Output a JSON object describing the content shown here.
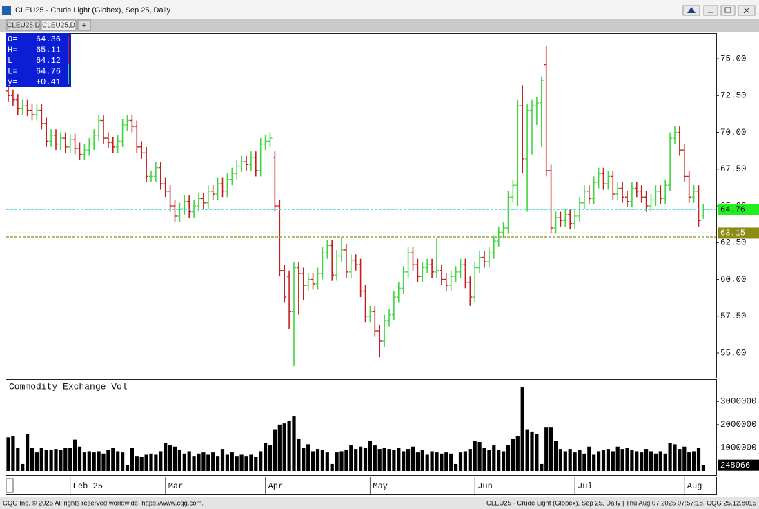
{
  "window": {
    "title": "CLEU25 - Crude Light (Globex), Sep 25, Daily",
    "tabs": [
      "CLEU25,D",
      "CLEU25,D",
      "+"
    ],
    "footer_left": "CQG Inc. © 2025 All rights reserved worldwide. https://www.cqg.com.",
    "footer_right": "CLEU25 - Crude Light (Globex), Sep 25, Daily | Thu Aug 07 2025 07:57:18, CQG 25.12.8015"
  },
  "chart_data": [
    {
      "type": "ohlc",
      "up_color": "#3fd63f",
      "down_color": "#c41e1e",
      "last_color": "#33d6d6",
      "level_color": "#8c8c14",
      "ylim": [
        53.31,
        76.74
      ],
      "yticks": [
        {
          "value": 55,
          "label": "55.00"
        },
        {
          "value": 57.5,
          "label": "57.50"
        },
        {
          "value": 60,
          "label": "60.00"
        },
        {
          "value": 62.5,
          "label": "62.50"
        },
        {
          "value": 65,
          "label": "65.00"
        },
        {
          "value": 67.5,
          "label": "67.50"
        },
        {
          "value": 70,
          "label": "70.00"
        },
        {
          "value": 72.5,
          "label": "72.50"
        },
        {
          "value": 75,
          "label": "75.00"
        }
      ],
      "levels": [
        63.15,
        62.89
      ],
      "ohlc_box": {
        "labels": [
          "O=",
          "H=",
          "L=",
          "L=",
          "y="
        ],
        "change": {
          "value": 0.41,
          "label": "+0.41"
        }
      },
      "categories": [
        null,
        null,
        null,
        null,
        null,
        null,
        null,
        null,
        null,
        null,
        null,
        null,
        null,
        "Feb 25",
        null,
        null,
        null,
        null,
        null,
        null,
        null,
        null,
        null,
        null,
        null,
        null,
        null,
        null,
        null,
        null,
        null,
        null,
        null,
        "Mar",
        null,
        null,
        null,
        null,
        null,
        null,
        null,
        null,
        null,
        null,
        null,
        null,
        null,
        null,
        null,
        null,
        null,
        null,
        null,
        null,
        "Apr",
        null,
        null,
        null,
        null,
        null,
        null,
        null,
        null,
        null,
        null,
        null,
        null,
        null,
        null,
        null,
        null,
        null,
        null,
        null,
        null,
        null,
        "May",
        null,
        null,
        null,
        null,
        null,
        null,
        null,
        null,
        null,
        null,
        null,
        null,
        null,
        null,
        null,
        null,
        null,
        null,
        null,
        null,
        null,
        "Jun",
        null,
        null,
        null,
        null,
        null,
        null,
        null,
        null,
        null,
        null,
        null,
        null,
        null,
        null,
        null,
        null,
        null,
        null,
        null,
        null,
        "Jul",
        null,
        null,
        null,
        null,
        null,
        null,
        null,
        null,
        null,
        null,
        null,
        null,
        null,
        null,
        null,
        null,
        null,
        null,
        null,
        null,
        null,
        null,
        "Aug",
        null,
        null,
        null,
        null
      ],
      "open": [
        72.8,
        72.5,
        72.2,
        71.6,
        71.8,
        71.5,
        71.2,
        71.5,
        70.6,
        69.4,
        69.8,
        69.2,
        69.6,
        69.0,
        69.5,
        68.9,
        68.5,
        68.8,
        69.2,
        69.8,
        70.8,
        69.6,
        69.3,
        69.0,
        69.4,
        70.5,
        70.8,
        70.4,
        69.0,
        68.6,
        67.0,
        67.0,
        67.6,
        66.5,
        66.0,
        65.0,
        64.3,
        64.8,
        65.3,
        64.6,
        65.0,
        65.5,
        65.2,
        66.0,
        65.8,
        66.5,
        66.0,
        66.8,
        67.2,
        67.7,
        68.0,
        67.8,
        68.3,
        67.4,
        69.2,
        69.4,
        68.3,
        65.0,
        60.6,
        60.2,
        57.8,
        60.8,
        60.4,
        59.6,
        60.0,
        59.7,
        60.4,
        61.8,
        62.3,
        60.3,
        61.6,
        62.0,
        60.5,
        61.3,
        61.0,
        59.2,
        57.5,
        57.8,
        56.5,
        55.8,
        57.2,
        57.6,
        58.8,
        59.4,
        60.5,
        61.8,
        61.0,
        60.2,
        60.8,
        61.0,
        60.5,
        60.6,
        60.0,
        59.6,
        60.2,
        60.5,
        61.0,
        59.8,
        58.8,
        60.8,
        61.5,
        61.2,
        61.8,
        62.6,
        63.2,
        63.5,
        65.6,
        66.4,
        71.8,
        68.2,
        71.5,
        71.8,
        72.0,
        74.6,
        67.4,
        63.5,
        64.2,
        64.0,
        64.4,
        63.8,
        64.3,
        65.2,
        66.0,
        65.5,
        66.6,
        67.2,
        66.5,
        67.0,
        65.8,
        66.2,
        65.6,
        65.3,
        66.2,
        66.0,
        65.6,
        65.0,
        65.4,
        66.0,
        65.5,
        66.4,
        69.6,
        70.0,
        68.8,
        67.0,
        65.6,
        66.0,
        64.36
      ],
      "high": [
        73.2,
        72.9,
        72.6,
        72.2,
        72.2,
        71.9,
        71.9,
        71.9,
        71.0,
        70.2,
        70.2,
        70.0,
        70.0,
        69.9,
        69.9,
        69.3,
        69.2,
        69.6,
        70.2,
        71.2,
        71.2,
        70.0,
        69.7,
        69.8,
        70.9,
        71.2,
        71.2,
        70.8,
        69.4,
        69.0,
        67.4,
        68.0,
        68.0,
        66.9,
        66.4,
        65.4,
        65.2,
        65.7,
        65.7,
        65.4,
        65.9,
        65.9,
        66.4,
        66.4,
        66.9,
        66.9,
        67.2,
        67.6,
        68.1,
        68.4,
        68.4,
        68.7,
        68.7,
        69.6,
        69.8,
        70.0,
        68.7,
        65.4,
        61.0,
        60.6,
        61.2,
        61.2,
        60.8,
        60.4,
        60.4,
        60.8,
        62.2,
        62.7,
        62.7,
        62.0,
        62.9,
        62.4,
        61.7,
        61.7,
        61.4,
        59.6,
        58.2,
        58.2,
        56.9,
        57.6,
        58.0,
        59.2,
        59.8,
        60.9,
        62.2,
        62.2,
        61.4,
        61.2,
        61.4,
        61.4,
        62.8,
        61.0,
        60.4,
        60.6,
        60.9,
        61.4,
        61.4,
        60.2,
        61.2,
        61.9,
        61.9,
        62.2,
        63.0,
        63.6,
        63.9,
        66.0,
        66.8,
        72.2,
        73.2,
        71.9,
        72.2,
        72.4,
        73.8,
        75.9,
        67.8,
        64.6,
        64.6,
        64.8,
        64.8,
        64.7,
        65.6,
        66.4,
        66.4,
        67.0,
        67.6,
        67.6,
        67.4,
        67.4,
        66.6,
        66.6,
        66.0,
        66.6,
        66.6,
        66.4,
        66.0,
        65.8,
        66.4,
        66.4,
        66.8,
        70.0,
        70.4,
        70.4,
        69.2,
        67.4,
        66.4,
        66.4,
        65.11
      ],
      "low": [
        72.1,
        71.8,
        71.2,
        71.2,
        71.1,
        70.8,
        70.8,
        70.2,
        69.0,
        69.0,
        68.8,
        68.8,
        68.6,
        68.6,
        68.5,
        68.1,
        68.1,
        68.4,
        68.8,
        69.4,
        69.2,
        68.9,
        68.6,
        68.6,
        69.0,
        70.1,
        70.0,
        68.6,
        68.2,
        66.6,
        66.6,
        66.6,
        66.1,
        65.6,
        64.6,
        63.9,
        63.9,
        64.4,
        64.2,
        64.2,
        64.6,
        64.8,
        64.8,
        65.4,
        65.4,
        65.6,
        65.6,
        66.4,
        66.8,
        67.3,
        67.4,
        67.4,
        67.0,
        67.0,
        68.8,
        69.0,
        64.6,
        60.2,
        58.4,
        56.6,
        54.1,
        57.6,
        58.6,
        59.2,
        59.3,
        59.3,
        60.0,
        61.4,
        59.9,
        59.9,
        61.2,
        60.1,
        60.1,
        60.6,
        58.8,
        57.1,
        57.1,
        56.1,
        54.7,
        55.4,
        56.8,
        57.2,
        58.4,
        59.0,
        60.1,
        60.6,
        59.8,
        59.8,
        60.4,
        60.1,
        60.1,
        59.6,
        59.2,
        59.2,
        59.8,
        60.1,
        59.4,
        58.2,
        58.4,
        60.4,
        60.8,
        60.8,
        61.4,
        62.2,
        62.8,
        63.1,
        65.2,
        65.0,
        67.2,
        64.6,
        68.5,
        70.5,
        69.0,
        67.0,
        63.1,
        63.1,
        63.6,
        63.6,
        63.4,
        63.4,
        63.9,
        64.8,
        65.1,
        65.1,
        66.2,
        66.1,
        66.1,
        65.4,
        65.4,
        65.2,
        64.9,
        64.9,
        65.6,
        65.2,
        64.6,
        64.6,
        65.0,
        65.1,
        65.1,
        66.0,
        69.2,
        68.4,
        66.6,
        65.2,
        65.2,
        63.6,
        64.12
      ],
      "close": [
        72.5,
        72.2,
        71.6,
        71.8,
        71.5,
        71.2,
        71.5,
        70.6,
        69.4,
        69.8,
        69.2,
        69.6,
        69.0,
        69.5,
        68.9,
        68.5,
        68.8,
        69.2,
        69.8,
        70.8,
        69.6,
        69.3,
        69.0,
        69.4,
        70.5,
        70.8,
        70.4,
        69.0,
        68.6,
        67.0,
        67.0,
        67.6,
        66.5,
        66.0,
        65.0,
        64.3,
        64.8,
        65.3,
        64.6,
        65.0,
        65.5,
        65.2,
        66.0,
        65.8,
        66.5,
        66.0,
        66.8,
        67.2,
        67.7,
        68.0,
        67.8,
        68.3,
        67.4,
        69.2,
        69.4,
        69.6,
        65.0,
        60.6,
        58.8,
        57.8,
        60.8,
        60.4,
        59.6,
        60.0,
        59.7,
        60.4,
        61.8,
        62.3,
        60.3,
        61.6,
        62.0,
        60.5,
        61.3,
        61.0,
        59.2,
        57.5,
        57.8,
        56.5,
        55.8,
        57.2,
        57.6,
        58.8,
        59.4,
        60.5,
        61.8,
        61.0,
        60.2,
        60.8,
        61.0,
        60.5,
        60.6,
        60.0,
        59.6,
        60.2,
        60.5,
        61.0,
        59.8,
        58.8,
        60.8,
        61.5,
        61.2,
        61.8,
        62.6,
        63.2,
        63.5,
        65.6,
        66.4,
        71.8,
        68.2,
        71.5,
        71.8,
        72.0,
        73.5,
        67.4,
        63.5,
        64.2,
        64.0,
        64.4,
        63.8,
        64.3,
        65.2,
        66.0,
        65.5,
        66.6,
        67.2,
        66.5,
        67.0,
        65.8,
        66.2,
        65.6,
        65.3,
        66.2,
        66.0,
        65.6,
        65.0,
        65.4,
        66.0,
        65.5,
        66.4,
        69.6,
        70.0,
        68.8,
        67.0,
        65.6,
        66.0,
        64.0,
        64.76
      ]
    },
    {
      "type": "bar",
      "title": "Commodity Exchange Vol",
      "color": "#000000",
      "ylim": [
        0,
        3900000
      ],
      "yticks": [
        1000000,
        2000000,
        3000000
      ],
      "values": [
        1450000,
        1500000,
        1000000,
        300000,
        1600000,
        1000000,
        800000,
        1000000,
        900000,
        900000,
        950000,
        900000,
        1000000,
        1000000,
        1350000,
        1050000,
        800000,
        850000,
        800000,
        850000,
        750000,
        900000,
        1000000,
        850000,
        800000,
        250000,
        1000000,
        650000,
        600000,
        700000,
        750000,
        700000,
        850000,
        1200000,
        1100000,
        1050000,
        900000,
        750000,
        850000,
        650000,
        750000,
        800000,
        700000,
        800000,
        650000,
        950000,
        700000,
        800000,
        650000,
        700000,
        650000,
        700000,
        600000,
        850000,
        1200000,
        1100000,
        1800000,
        2000000,
        2050000,
        2150000,
        2350000,
        1400000,
        1000000,
        1150000,
        850000,
        950000,
        900000,
        800000,
        300000,
        800000,
        850000,
        900000,
        1100000,
        950000,
        1050000,
        1000000,
        1300000,
        1100000,
        950000,
        1000000,
        950000,
        900000,
        1000000,
        850000,
        950000,
        1050000,
        800000,
        900000,
        700000,
        850000,
        800000,
        750000,
        800000,
        750000,
        300000,
        800000,
        850000,
        950000,
        1300000,
        1250000,
        1000000,
        900000,
        1100000,
        900000,
        850000,
        1100000,
        1400000,
        1500000,
        3600000,
        1800000,
        1700000,
        1600000,
        300000,
        1900000,
        1900000,
        1300000,
        950000,
        850000,
        950000,
        800000,
        900000,
        750000,
        1050000,
        700000,
        850000,
        900000,
        950000,
        850000,
        1050000,
        950000,
        1000000,
        900000,
        850000,
        800000,
        950000,
        850000,
        750000,
        850000,
        750000,
        1200000,
        1150000,
        950000,
        1050000,
        800000,
        850000,
        1000000,
        248066
      ]
    }
  ]
}
